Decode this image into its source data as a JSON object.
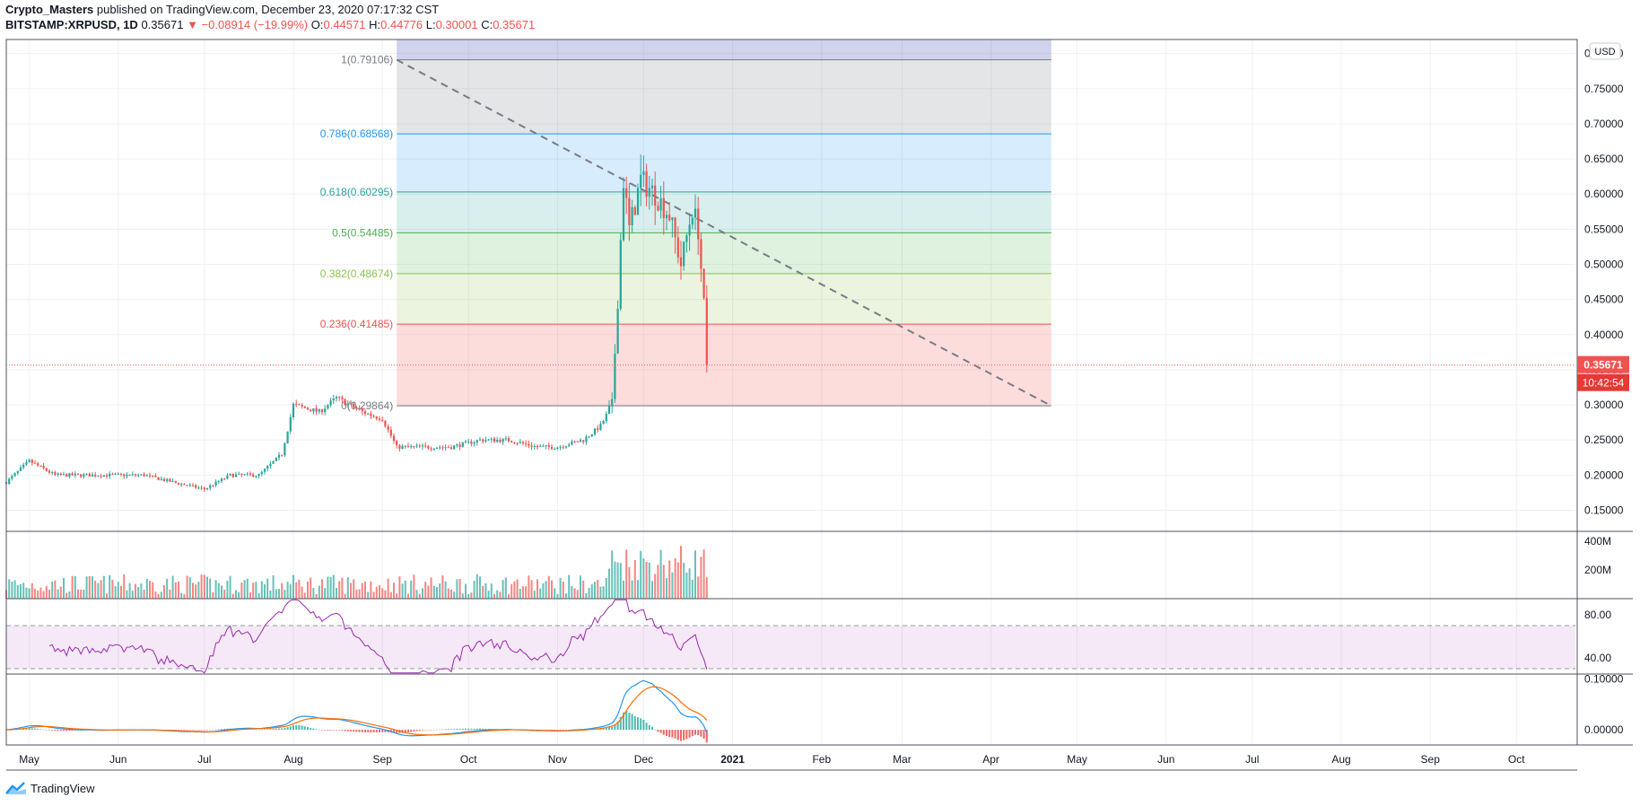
{
  "header": {
    "author": "Crypto_Masters",
    "published_text": "published on TradingView.com, December 23, 2020 07:17:32 CST",
    "symbol": "BITSTAMP:XRPUSD, 1D",
    "last": "0.35671",
    "change_arrow": "▼",
    "change": "−0.08914 (−19.99%)",
    "o_label": "O:",
    "o": "0.44571",
    "h_label": "H:",
    "h": "0.44776",
    "l_label": "L:",
    "l": "0.30001",
    "c_label": "C:",
    "c": "0.35671"
  },
  "footer": {
    "brand": "TradingView"
  },
  "price_axis": {
    "currency": "USD",
    "current_price": "0.35671",
    "countdown": "10:42:54"
  },
  "colors": {
    "up": "#26a69a",
    "down": "#ef5350",
    "rsi": "#9c27b0",
    "macd": "#2196f3",
    "signal": "#ff6d00"
  },
  "chart_data": [
    {
      "type": "candlestick",
      "symbol": "BITSTAMP:XRPUSD",
      "interval": "1D",
      "ylim": [
        0.12,
        0.82
      ],
      "y_ticks": [
        "0.15000",
        "0.20000",
        "0.25000",
        "0.30000",
        "0.35000",
        "0.40000",
        "0.45000",
        "0.50000",
        "0.55000",
        "0.60000",
        "0.65000",
        "0.70000",
        "0.75000",
        "0.80000"
      ],
      "x_ticks": [
        "May",
        "Jun",
        "Jul",
        "Aug",
        "Sep",
        "Oct",
        "Nov",
        "Dec",
        "2021",
        "Feb",
        "Mar",
        "Apr",
        "May",
        "Jun",
        "Jul",
        "Aug",
        "Sep",
        "Oct"
      ],
      "series": [
        {
          "name": "XRPUSD close",
          "x": [
            "2020-04-23",
            "2020-05-01",
            "2020-05-10",
            "2020-05-20",
            "2020-06-01",
            "2020-06-10",
            "2020-06-20",
            "2020-07-01",
            "2020-07-10",
            "2020-07-20",
            "2020-07-28",
            "2020-08-01",
            "2020-08-10",
            "2020-08-16",
            "2020-08-25",
            "2020-09-01",
            "2020-09-06",
            "2020-09-15",
            "2020-09-25",
            "2020-10-05",
            "2020-10-15",
            "2020-10-25",
            "2020-11-01",
            "2020-11-10",
            "2020-11-16",
            "2020-11-20",
            "2020-11-22",
            "2020-11-24",
            "2020-11-26",
            "2020-11-30",
            "2020-12-05",
            "2020-12-10",
            "2020-12-14",
            "2020-12-18",
            "2020-12-20",
            "2020-12-22",
            "2020-12-23"
          ],
          "values": [
            0.19,
            0.22,
            0.2,
            0.2,
            0.2,
            0.2,
            0.19,
            0.18,
            0.2,
            0.2,
            0.23,
            0.3,
            0.29,
            0.31,
            0.29,
            0.28,
            0.24,
            0.24,
            0.24,
            0.25,
            0.25,
            0.24,
            0.24,
            0.25,
            0.27,
            0.3,
            0.45,
            0.62,
            0.55,
            0.62,
            0.6,
            0.57,
            0.5,
            0.58,
            0.55,
            0.44,
            0.35671
          ]
        }
      ],
      "fib_retracement": {
        "levels": [
          {
            "label": "1(0.79106)",
            "ratio": 1,
            "price": 0.79106
          },
          {
            "label": "0.786(0.68568)",
            "ratio": 0.786,
            "price": 0.68568
          },
          {
            "label": "0.618(0.60295)",
            "ratio": 0.618,
            "price": 0.60295
          },
          {
            "label": "0.5(0.54485)",
            "ratio": 0.5,
            "price": 0.54485
          },
          {
            "label": "0.382(0.48674)",
            "ratio": 0.382,
            "price": 0.48674
          },
          {
            "label": "0.236(0.41485)",
            "ratio": 0.236,
            "price": 0.41485
          },
          {
            "label": "0(0.29864)",
            "ratio": 0,
            "price": 0.29864
          }
        ],
        "colors": [
          "#787b86",
          "#2196f3",
          "#26a69a",
          "#4caf50",
          "#8bc34a",
          "#ef5350",
          "#787b86"
        ],
        "fills": [
          "rgba(120,123,134,0.20)",
          "rgba(33,150,243,0.18)",
          "rgba(38,166,154,0.18)",
          "rgba(76,175,80,0.18)",
          "rgba(139,195,74,0.18)",
          "rgba(239,83,80,0.20)"
        ],
        "top_fill": "rgba(63,81,181,0.25)",
        "trend_line": {
          "from": {
            "date": "2020-09-06",
            "price": 0.79106
          },
          "to": {
            "date": "2021-04-22",
            "price": 0.29864
          }
        }
      }
    },
    {
      "type": "bar",
      "name": "Volume",
      "y_ticks": [
        "200M",
        "400M"
      ],
      "ylim": [
        0,
        420
      ]
    },
    {
      "type": "line",
      "name": "RSI",
      "y_ticks": [
        "40.00",
        "80.00"
      ],
      "ylim": [
        25,
        95
      ],
      "bands": [
        30,
        70
      ]
    },
    {
      "type": "line",
      "name": "MACD",
      "y_ticks": [
        "0.00000",
        "0.10000"
      ],
      "ylim": [
        -0.03,
        0.11
      ]
    }
  ]
}
